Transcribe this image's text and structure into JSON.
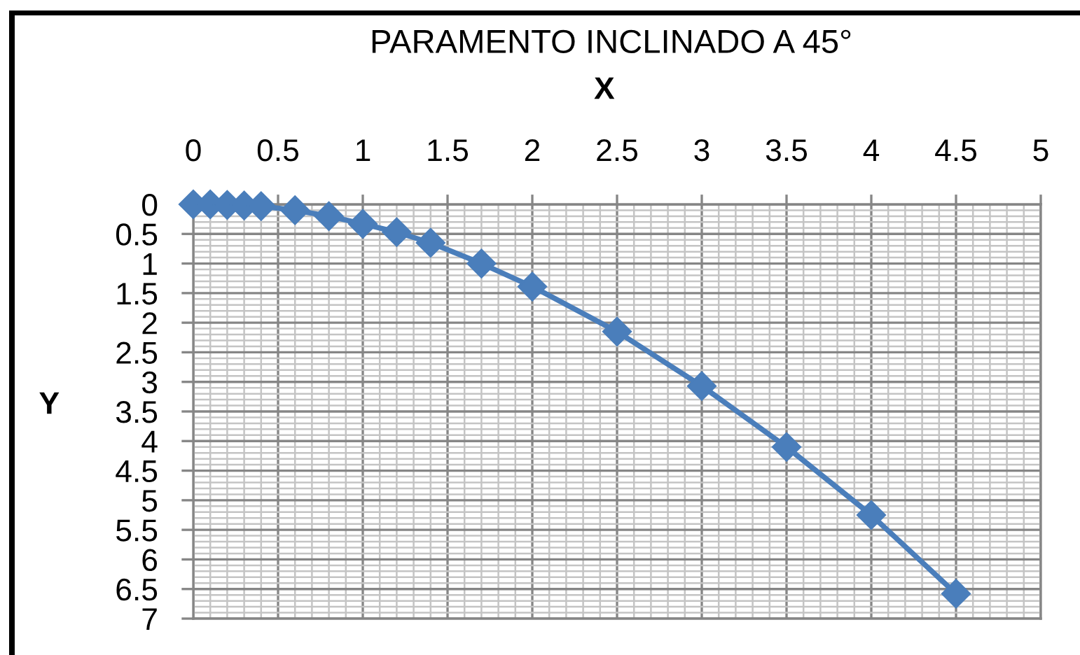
{
  "chart_data": {
    "type": "line",
    "title": "PARAMENTO INCLINADO A 45°",
    "xlabel": "X",
    "ylabel": "Y",
    "x": [
      0,
      0.1,
      0.2,
      0.3,
      0.4,
      0.6,
      0.8,
      1,
      1.2,
      1.4,
      1.7,
      2,
      2.5,
      3,
      3.5,
      4,
      4.5
    ],
    "series": [
      {
        "color": "#4a7ebb",
        "values": [
          0,
          0,
          0.01,
          0.02,
          0.03,
          0.1,
          0.2,
          0.33,
          0.47,
          0.65,
          1.0,
          1.39,
          2.15,
          3.07,
          4.1,
          5.25,
          6.58
        ]
      }
    ],
    "xlim": [
      0,
      5
    ],
    "xticks": [
      0,
      0.5,
      1,
      1.5,
      2,
      2.5,
      3,
      3.5,
      4,
      4.5,
      5
    ],
    "ylim": [
      7,
      0
    ],
    "yticks": [
      0,
      0.5,
      1,
      1.5,
      2,
      2.5,
      3,
      3.5,
      4,
      4.5,
      5,
      5.5,
      6,
      6.5,
      7
    ],
    "grid": true,
    "marker": "diamond",
    "line_style": "solid"
  }
}
